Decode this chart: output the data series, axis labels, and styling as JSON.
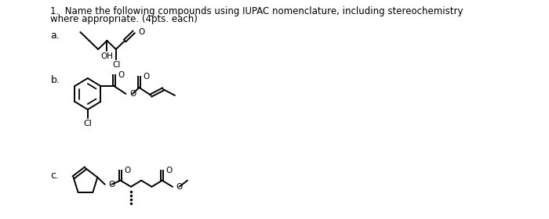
{
  "title_line1": "1.  Name the following compounds using IUPAC nomenclature, including stereochemistry",
  "title_line2": "where appropriate. (4pts. each)",
  "label_a": "a.",
  "label_b": "b.",
  "label_c": "c.",
  "bg_color": "#ffffff",
  "line_color": "#000000",
  "text_color": "#000000",
  "font_size_title": 8.5,
  "font_size_label": 9,
  "font_size_atom": 7.5
}
